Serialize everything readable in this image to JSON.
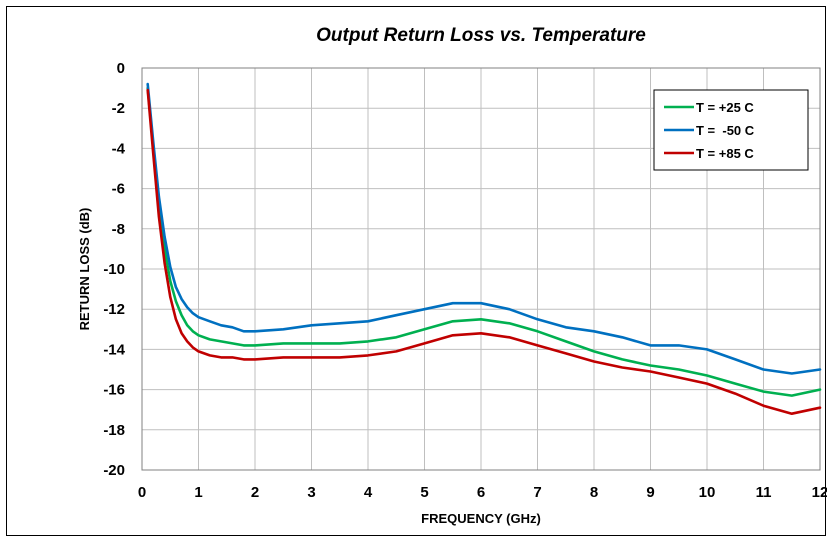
{
  "chart_data": {
    "type": "line",
    "title": "Output Return Loss vs. Temperature",
    "xlabel": "FREQUENCY (GHz)",
    "ylabel": "RETURN LOSS (dB)",
    "xlim": [
      0,
      12
    ],
    "ylim": [
      -20,
      0
    ],
    "xticks": [
      0,
      1,
      2,
      3,
      4,
      5,
      6,
      7,
      8,
      9,
      10,
      11,
      12
    ],
    "yticks": [
      0,
      -2,
      -4,
      -6,
      -8,
      -10,
      -12,
      -14,
      -16,
      -18,
      -20
    ],
    "grid": true,
    "legend_position": "top-right",
    "series": [
      {
        "name": "T = +25 C",
        "color": "#00b050",
        "x": [
          0.1,
          0.2,
          0.3,
          0.4,
          0.5,
          0.6,
          0.7,
          0.8,
          0.9,
          1.0,
          1.2,
          1.4,
          1.6,
          1.8,
          2.0,
          2.5,
          3.0,
          3.5,
          4.0,
          4.5,
          5.0,
          5.5,
          6.0,
          6.5,
          7.0,
          7.5,
          8.0,
          8.5,
          9.0,
          9.5,
          10.0,
          10.5,
          11.0,
          11.5,
          12.0
        ],
        "y": [
          -1.0,
          -4.0,
          -6.9,
          -9.0,
          -10.6,
          -11.6,
          -12.3,
          -12.8,
          -13.1,
          -13.3,
          -13.5,
          -13.6,
          -13.7,
          -13.8,
          -13.8,
          -13.7,
          -13.7,
          -13.7,
          -13.6,
          -13.4,
          -13.0,
          -12.6,
          -12.5,
          -12.7,
          -13.1,
          -13.6,
          -14.1,
          -14.5,
          -14.8,
          -15.0,
          -15.3,
          -15.7,
          -16.1,
          -16.3,
          -16.0
        ]
      },
      {
        "name": "T =  -50 C",
        "color": "#0070c0",
        "x": [
          0.1,
          0.2,
          0.3,
          0.4,
          0.5,
          0.6,
          0.7,
          0.8,
          0.9,
          1.0,
          1.2,
          1.4,
          1.6,
          1.8,
          2.0,
          2.5,
          3.0,
          3.5,
          4.0,
          4.5,
          5.0,
          5.5,
          6.0,
          6.5,
          7.0,
          7.5,
          8.0,
          8.5,
          9.0,
          9.5,
          10.0,
          10.5,
          11.0,
          11.5,
          12.0
        ],
        "y": [
          -0.8,
          -3.7,
          -6.4,
          -8.4,
          -9.9,
          -10.9,
          -11.5,
          -11.9,
          -12.2,
          -12.4,
          -12.6,
          -12.8,
          -12.9,
          -13.1,
          -13.1,
          -13.0,
          -12.8,
          -12.7,
          -12.6,
          -12.3,
          -12.0,
          -11.7,
          -11.7,
          -12.0,
          -12.5,
          -12.9,
          -13.1,
          -13.4,
          -13.8,
          -13.8,
          -14.0,
          -14.5,
          -15.0,
          -15.2,
          -15.0
        ]
      },
      {
        "name": "T = +85 C",
        "color": "#c00000",
        "x": [
          0.1,
          0.2,
          0.3,
          0.4,
          0.5,
          0.6,
          0.7,
          0.8,
          0.9,
          1.0,
          1.2,
          1.4,
          1.6,
          1.8,
          2.0,
          2.5,
          3.0,
          3.5,
          4.0,
          4.5,
          5.0,
          5.5,
          6.0,
          6.5,
          7.0,
          7.5,
          8.0,
          8.5,
          9.0,
          9.5,
          10.0,
          10.5,
          11.0,
          11.5,
          12.0
        ],
        "y": [
          -1.1,
          -4.3,
          -7.4,
          -9.7,
          -11.4,
          -12.5,
          -13.2,
          -13.6,
          -13.9,
          -14.1,
          -14.3,
          -14.4,
          -14.4,
          -14.5,
          -14.5,
          -14.4,
          -14.4,
          -14.4,
          -14.3,
          -14.1,
          -13.7,
          -13.3,
          -13.2,
          -13.4,
          -13.8,
          -14.2,
          -14.6,
          -14.9,
          -15.1,
          -15.4,
          -15.7,
          -16.2,
          -16.8,
          -17.2,
          -16.9
        ]
      }
    ]
  }
}
